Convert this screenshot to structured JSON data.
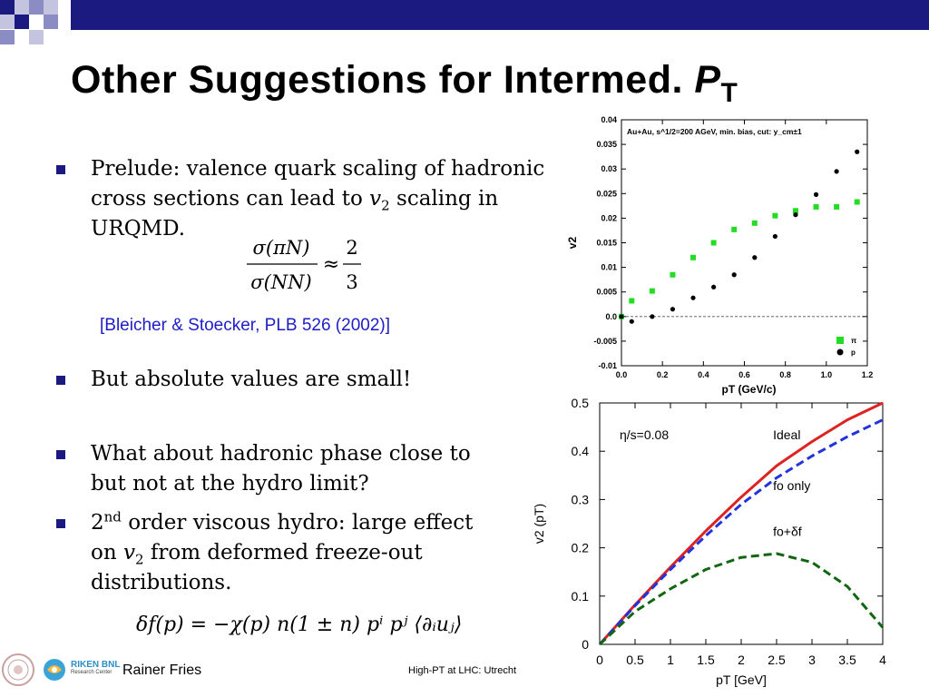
{
  "slide": {
    "title_main": "Other Suggestions for Intermed.",
    "title_p": "P",
    "title_sub": "T",
    "bullets": [
      {
        "text_a": "Prelude: valence quark scaling of hadronic cross sections can lead to ",
        "var": "v",
        "sub": "2",
        "text_b": " scaling in URQMD."
      },
      {
        "text": "But absolute values are small!"
      },
      {
        "text": "What about hadronic phase close to but not at the hydro limit?"
      },
      {
        "pre": "2",
        "sup": "nd",
        "text_a": " order viscous hydro: large effect on ",
        "var": "v",
        "sub": "2",
        "text_b": " from deformed freeze-out distributions."
      }
    ],
    "reference": "[Bleicher & Stoecker, PLB 526 (2002)]",
    "equation1": {
      "num": "σ(πN)",
      "den": "σ(NN)",
      "approx": "≈",
      "frac_num": "2",
      "frac_den": "3"
    },
    "equation2": "δf(p) = −χ(p) n(1 ± n) pⁱ pʲ ⟨∂ᵢuⱼ⟩"
  },
  "footer": {
    "author": "Rainer Fries",
    "center": "High-PT at LHC: Utrecht",
    "logo_line1": "RIKEN BNL",
    "logo_line2": "Research Center"
  },
  "chart_data": [
    {
      "type": "scatter",
      "title": "Au+Au, s^1/2=200 AGeV, min. bias, cut: y_cm±1",
      "xlabel": "pT (GeV/c)",
      "ylabel": "v2",
      "xlim": [
        0.0,
        1.2
      ],
      "ylim": [
        -0.01,
        0.04
      ],
      "xticks": [
        "0.0",
        "0.2",
        "0.4",
        "0.6",
        "0.8",
        "1.0",
        "1.2"
      ],
      "yticks": [
        "-0.01",
        "-0.005",
        "0.0",
        "0.005",
        "0.01",
        "0.015",
        "0.02",
        "0.025",
        "0.03",
        "0.035",
        "0.04"
      ],
      "legend": "bottom-right",
      "series": [
        {
          "name": "π",
          "color": "#22dd22",
          "marker": "square",
          "x": [
            0.0,
            0.05,
            0.15,
            0.25,
            0.35,
            0.45,
            0.55,
            0.65,
            0.75,
            0.85,
            0.95,
            1.05,
            1.15
          ],
          "y": [
            0.0,
            0.0032,
            0.0052,
            0.0085,
            0.012,
            0.015,
            0.0177,
            0.019,
            0.0205,
            0.0215,
            0.0223,
            0.0223,
            0.0233
          ]
        },
        {
          "name": "p",
          "color": "#000000",
          "marker": "circle",
          "x": [
            0.0,
            0.05,
            0.15,
            0.25,
            0.35,
            0.45,
            0.55,
            0.65,
            0.75,
            0.85,
            0.95,
            1.05,
            1.15
          ],
          "y": [
            0.0,
            -0.001,
            0.0,
            0.0015,
            0.0038,
            0.006,
            0.0085,
            0.012,
            0.0163,
            0.0207,
            0.0248,
            0.0295,
            0.0335
          ]
        }
      ]
    },
    {
      "type": "line",
      "xlabel": "pT [GeV]",
      "ylabel": "v2 (pT)",
      "xlim": [
        0,
        4
      ],
      "ylim": [
        0,
        0.5
      ],
      "xticks": [
        "0",
        "0.5",
        "1",
        "1.5",
        "2",
        "2.5",
        "3",
        "3.5",
        "4"
      ],
      "yticks": [
        "0",
        "0.1",
        "0.2",
        "0.3",
        "0.4",
        "0.5"
      ],
      "annotations": [
        "η/s=0.08",
        "Ideal",
        "fo only",
        "fo+δf"
      ],
      "series": [
        {
          "name": "Ideal",
          "color": "#dd2222",
          "dash": "solid",
          "x": [
            0,
            0.5,
            1,
            1.5,
            2,
            2.5,
            3,
            3.5,
            4
          ],
          "y": [
            0,
            0.082,
            0.16,
            0.235,
            0.305,
            0.37,
            0.42,
            0.465,
            0.5
          ]
        },
        {
          "name": "fo only",
          "color": "#2233dd",
          "dash": "dashed",
          "x": [
            0,
            0.5,
            1,
            1.5,
            2,
            2.5,
            3,
            3.5,
            4
          ],
          "y": [
            0,
            0.08,
            0.155,
            0.225,
            0.29,
            0.345,
            0.39,
            0.43,
            0.465
          ]
        },
        {
          "name": "fo+δf",
          "color": "#116611",
          "dash": "dashed",
          "x": [
            0,
            0.5,
            1,
            1.5,
            2,
            2.5,
            3,
            3.5,
            4
          ],
          "y": [
            0,
            0.068,
            0.115,
            0.155,
            0.18,
            0.188,
            0.17,
            0.12,
            0.035
          ]
        }
      ]
    }
  ]
}
